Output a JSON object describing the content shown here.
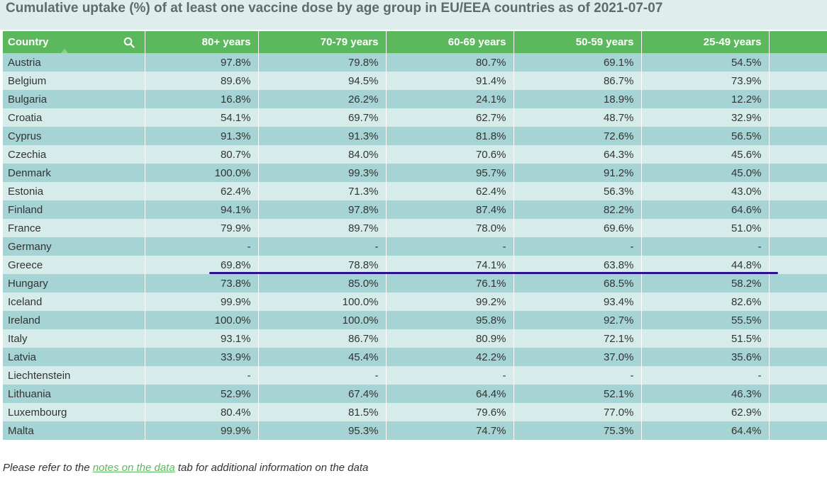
{
  "title": "Cumulative uptake (%) of at least one vaccine dose by age group in EU/EEA countries as of 2021-07-07",
  "table": {
    "headers": [
      "Country",
      "80+ years",
      "70-79 years",
      "60-69 years",
      "50-59 years",
      "25-49 years"
    ],
    "rows": [
      [
        "Austria",
        "97.8%",
        "79.8%",
        "80.7%",
        "69.1%",
        "54.5%"
      ],
      [
        "Belgium",
        "89.6%",
        "94.5%",
        "91.4%",
        "86.7%",
        "73.9%"
      ],
      [
        "Bulgaria",
        "16.8%",
        "26.2%",
        "24.1%",
        "18.9%",
        "12.2%"
      ],
      [
        "Croatia",
        "54.1%",
        "69.7%",
        "62.7%",
        "48.7%",
        "32.9%"
      ],
      [
        "Cyprus",
        "91.3%",
        "91.3%",
        "81.8%",
        "72.6%",
        "56.5%"
      ],
      [
        "Czechia",
        "80.7%",
        "84.0%",
        "70.6%",
        "64.3%",
        "45.6%"
      ],
      [
        "Denmark",
        "100.0%",
        "99.3%",
        "95.7%",
        "91.2%",
        "45.0%"
      ],
      [
        "Estonia",
        "62.4%",
        "71.3%",
        "62.4%",
        "56.3%",
        "43.0%"
      ],
      [
        "Finland",
        "94.1%",
        "97.8%",
        "87.4%",
        "82.2%",
        "64.6%"
      ],
      [
        "France",
        "79.9%",
        "89.7%",
        "78.0%",
        "69.6%",
        "51.0%"
      ],
      [
        "Germany",
        "-",
        "-",
        "-",
        "-",
        "-"
      ],
      [
        "Greece",
        "69.8%",
        "78.8%",
        "74.1%",
        "63.8%",
        "44.8%"
      ],
      [
        "Hungary",
        "73.8%",
        "85.0%",
        "76.1%",
        "68.5%",
        "58.2%"
      ],
      [
        "Iceland",
        "99.9%",
        "100.0%",
        "99.2%",
        "93.4%",
        "82.6%"
      ],
      [
        "Ireland",
        "100.0%",
        "100.0%",
        "95.8%",
        "92.7%",
        "55.5%"
      ],
      [
        "Italy",
        "93.1%",
        "86.7%",
        "80.9%",
        "72.1%",
        "51.5%"
      ],
      [
        "Latvia",
        "33.9%",
        "45.4%",
        "42.2%",
        "37.0%",
        "35.6%"
      ],
      [
        "Liechtenstein",
        "-",
        "-",
        "-",
        "-",
        "-"
      ],
      [
        "Lithuania",
        "52.9%",
        "67.4%",
        "64.4%",
        "52.1%",
        "46.3%"
      ],
      [
        "Luxembourg",
        "80.4%",
        "81.5%",
        "79.6%",
        "77.0%",
        "62.9%"
      ],
      [
        "Malta",
        "99.9%",
        "95.3%",
        "74.7%",
        "75.3%",
        "64.4%"
      ]
    ]
  },
  "note": {
    "before": "Please refer to the ",
    "link": "notes on the data",
    "after": " tab for additional information on the data"
  },
  "icons": {
    "search": "search-icon",
    "sort": "sort-ascending-icon"
  },
  "colors": {
    "header": "#5cb85c",
    "row_odd": "#a6d3d4",
    "row_even": "#d6eceb",
    "highlight_line": "#2a1290"
  }
}
